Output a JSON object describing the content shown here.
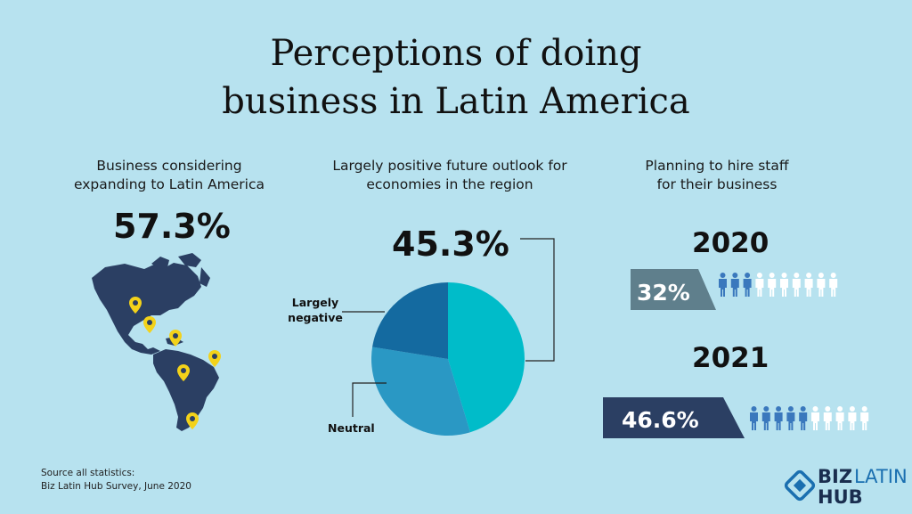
{
  "title": {
    "line1": "Perceptions of doing",
    "line2": "business in Latin America"
  },
  "left": {
    "caption1": "Business considering",
    "caption2": "expanding to Latin America",
    "value": "57.3%"
  },
  "middle": {
    "caption1": "Largely positive future outlook for",
    "caption2": "economies in the region",
    "value": "45.3%",
    "label_negative1": "Largely",
    "label_negative2": "negative",
    "label_neutral": "Neutral"
  },
  "right": {
    "caption1": "Planning to hire staff",
    "caption2": "for their business",
    "year1": "2020",
    "pct1": "32%",
    "year2": "2021",
    "pct2": "46.6%"
  },
  "source": {
    "line1": "Source  all statistics:",
    "line2": "Biz Latin Hub Survey, June 2020"
  },
  "logo": {
    "biz": "BIZ",
    "latin": "LATIN",
    "hub": "HUB"
  },
  "colors": {
    "background": "#b7e2ef",
    "map": "#2b3f63",
    "pin": "#f3d21a",
    "positive": "#00bcc9",
    "neutral": "#2a98c4",
    "negative": "#146aa0",
    "person_filled": "#3a78bd",
    "person_empty": "#ffffff",
    "banner_2020": "#5f7f8c",
    "banner_2021": "#2b3f63"
  },
  "chart_data": [
    {
      "type": "pie",
      "title": "Largely positive future outlook for economies in the region",
      "slices": [
        {
          "name": "Largely positive",
          "value": 45.3
        },
        {
          "name": "Neutral",
          "value": 32.2
        },
        {
          "name": "Largely negative",
          "value": 22.5
        }
      ]
    },
    {
      "type": "bar",
      "title": "Planning to hire staff for their business",
      "categories": [
        "2020",
        "2021"
      ],
      "values": [
        32,
        46.6
      ],
      "unit": "%"
    },
    {
      "type": "bar",
      "title": "Business considering expanding to Latin America",
      "categories": [
        "Business considering expanding to Latin America"
      ],
      "values": [
        57.3
      ],
      "unit": "%"
    }
  ]
}
